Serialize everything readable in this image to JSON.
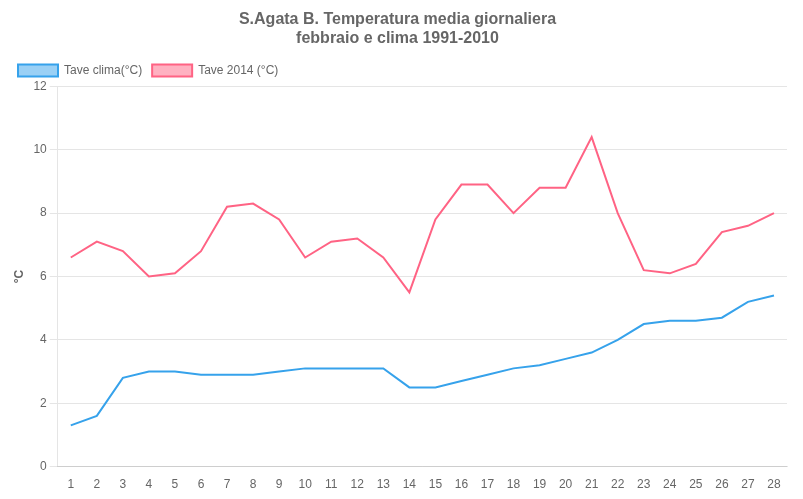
{
  "chart_data": {
    "type": "line",
    "title": "S.Agata B. Temperatura media giornaliera\nfebbraio e clima 1991-2010",
    "y_label": "°C",
    "x": [
      1,
      2,
      3,
      4,
      5,
      6,
      7,
      8,
      9,
      10,
      11,
      12,
      13,
      14,
      15,
      16,
      17,
      18,
      19,
      20,
      21,
      22,
      23,
      24,
      25,
      26,
      27,
      28
    ],
    "series": [
      {
        "name": "Tave clima(°C)",
        "values": [
          1.3,
          1.6,
          2.8,
          3.0,
          3.0,
          2.9,
          2.9,
          2.9,
          3.0,
          3.1,
          3.1,
          3.1,
          3.1,
          2.5,
          2.5,
          2.7,
          2.9,
          3.1,
          3.2,
          3.4,
          3.6,
          4.0,
          4.5,
          4.6,
          4.6,
          4.7,
          5.2,
          5.4
        ]
      },
      {
        "name": "Tave 2014 (°C)",
        "values": [
          6.6,
          7.1,
          6.8,
          6.0,
          6.1,
          6.8,
          8.2,
          8.3,
          7.8,
          6.6,
          7.1,
          7.2,
          6.6,
          5.5,
          7.8,
          8.9,
          8.9,
          8.0,
          8.8,
          8.8,
          10.4,
          8.0,
          6.2,
          6.1,
          6.4,
          7.4,
          7.6,
          8.0
        ]
      }
    ],
    "xlim": [
      0.5,
      28.5
    ],
    "xticks": [
      1,
      2,
      3,
      4,
      5,
      6,
      7,
      8,
      9,
      10,
      11,
      12,
      13,
      14,
      15,
      16,
      17,
      18,
      19,
      20,
      21,
      22,
      23,
      24,
      25,
      26,
      27,
      28
    ],
    "ylim": [
      0,
      12
    ],
    "yticks": [
      0,
      2,
      4,
      6,
      8,
      10,
      12
    ],
    "grid": "y",
    "legend": "upper left"
  }
}
